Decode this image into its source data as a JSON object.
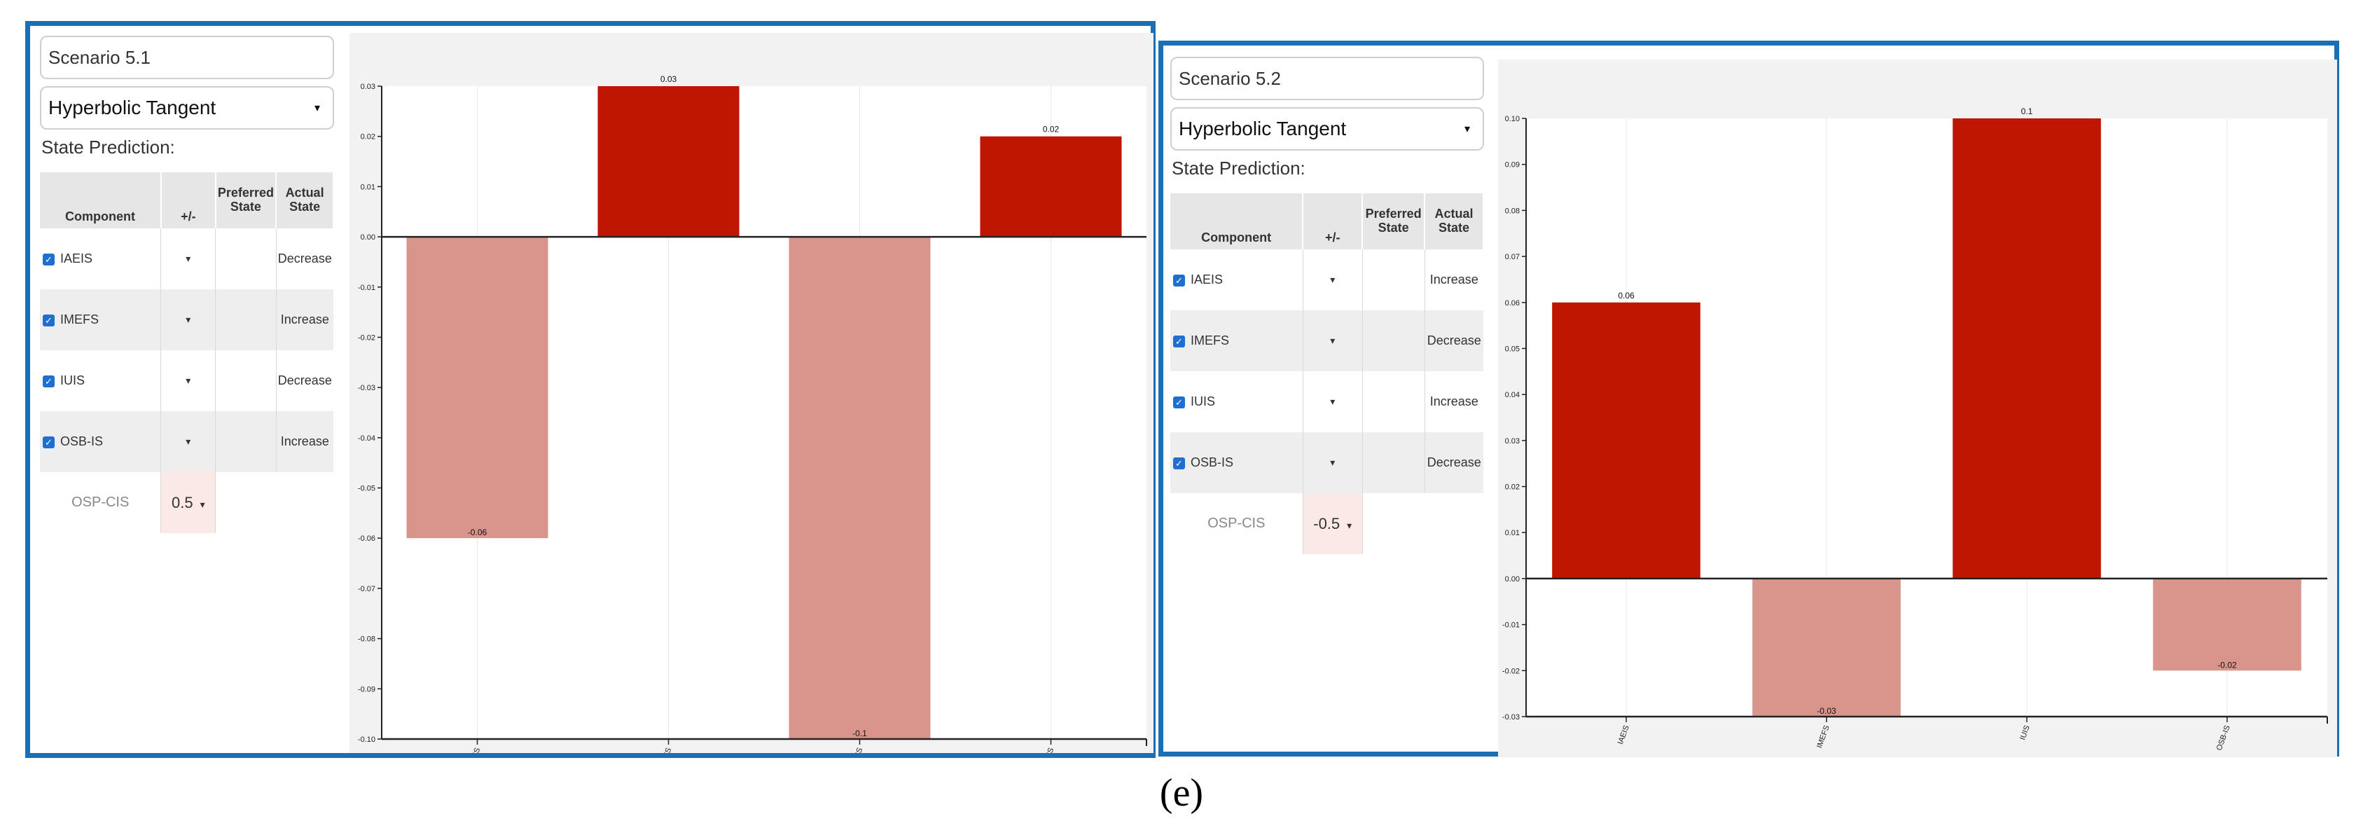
{
  "panels": [
    {
      "scenario": "Scenario 5.1",
      "activation": "Hyperbolic Tangent",
      "state_prediction_label": "State Prediction:",
      "headers": {
        "component": "Component",
        "pm": "+/-",
        "preferred_line1": "Preferred",
        "preferred_line2": "State",
        "actual_line1": "Actual",
        "actual_line2": "State"
      },
      "rows": [
        {
          "component": "IAEIS",
          "pm": "▾",
          "actual": "Decrease"
        },
        {
          "component": "IMEFS",
          "pm": "▾",
          "actual": "Increase"
        },
        {
          "component": "IUIS",
          "pm": "▾",
          "actual": "Decrease"
        },
        {
          "component": "OSB-IS",
          "pm": "▾",
          "actual": "Increase"
        }
      ],
      "output": {
        "component": "OSP-CIS",
        "value": "0.5"
      }
    },
    {
      "scenario": "Scenario 5.2",
      "activation": "Hyperbolic Tangent",
      "state_prediction_label": "State Prediction:",
      "headers": {
        "component": "Component",
        "pm": "+/-",
        "preferred_line1": "Preferred",
        "preferred_line2": "State",
        "actual_line1": "Actual",
        "actual_line2": "State"
      },
      "rows": [
        {
          "component": "IAEIS",
          "pm": "▾",
          "actual": "Increase"
        },
        {
          "component": "IMEFS",
          "pm": "▾",
          "actual": "Decrease"
        },
        {
          "component": "IUIS",
          "pm": "▾",
          "actual": "Increase"
        },
        {
          "component": "OSB-IS",
          "pm": "▾",
          "actual": "Decrease"
        }
      ],
      "output": {
        "component": "OSP-CIS",
        "value": "-0.5"
      }
    }
  ],
  "chart_data": [
    {
      "type": "bar",
      "categories": [
        "IAEIS",
        "IMEFS",
        "IUIS",
        "OSB-IS"
      ],
      "values": [
        -0.06,
        0.03,
        -0.1,
        0.02
      ],
      "data_labels": [
        "-0.06",
        "0.03",
        "-0.1",
        "0.02"
      ],
      "ylim": [
        -0.1,
        0.03
      ],
      "ticks": [
        0.03,
        0.02,
        0.01,
        0.0,
        -0.01,
        -0.02,
        -0.03,
        -0.04,
        -0.05,
        -0.06,
        -0.07,
        -0.08,
        -0.09,
        -0.1
      ],
      "tick_labels": [
        "0.03",
        "0.02",
        "0.01",
        "0.00",
        "-0.01",
        "-0.02",
        "-0.03",
        "-0.04",
        "-0.05",
        "-0.06",
        "-0.07",
        "-0.08",
        "-0.09",
        "-0.10"
      ],
      "grid": "vertical only",
      "colors": {
        "positive": "#be1600",
        "negative": "#d9948c"
      }
    },
    {
      "type": "bar",
      "categories": [
        "IAEIS",
        "IMEFS",
        "IUIS",
        "OSB-IS"
      ],
      "values": [
        0.06,
        -0.03,
        0.1,
        -0.02
      ],
      "data_labels": [
        "0.06",
        "-0.03",
        "0.1",
        "-0.02"
      ],
      "ylim": [
        -0.03,
        0.1
      ],
      "ticks": [
        0.1,
        0.09,
        0.08,
        0.07,
        0.06,
        0.05,
        0.04,
        0.03,
        0.02,
        0.01,
        0.0,
        -0.01,
        -0.02,
        -0.03
      ],
      "tick_labels": [
        "0.10",
        "0.09",
        "0.08",
        "0.07",
        "0.06",
        "0.05",
        "0.04",
        "0.03",
        "0.02",
        "0.01",
        "0.00",
        "-0.01",
        "-0.02",
        "-0.03"
      ],
      "grid": "vertical only",
      "colors": {
        "positive": "#be1600",
        "negative": "#d9948c"
      }
    }
  ],
  "caption": "(e)"
}
